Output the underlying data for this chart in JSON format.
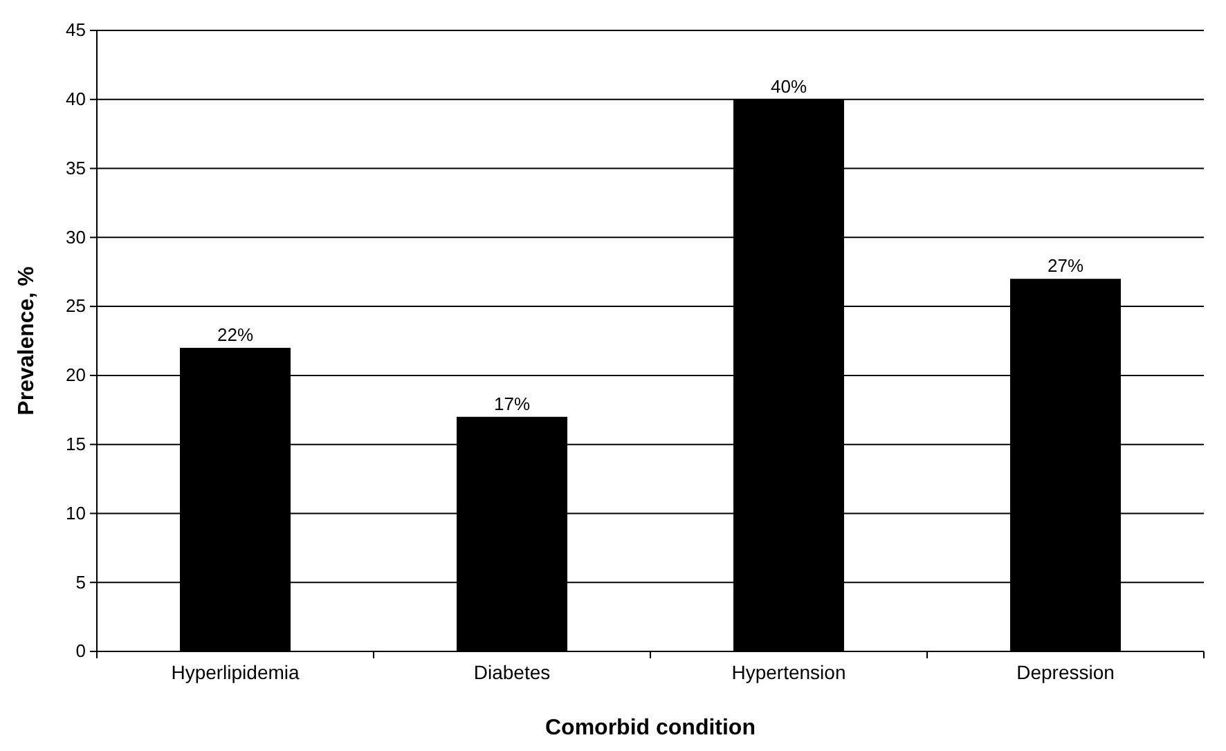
{
  "chart_data": {
    "type": "bar",
    "xlabel": "Comorbid condition",
    "ylabel": "Prevalence, %",
    "categories": [
      "Hyperlipidemia",
      "Diabetes",
      "Hypertension",
      "Depression"
    ],
    "values": [
      22,
      17,
      40,
      27
    ],
    "value_labels": [
      "22%",
      "17%",
      "40%",
      "27%"
    ],
    "color": "#000000",
    "ylim": [
      0,
      45
    ],
    "yticks": [
      0,
      5,
      10,
      15,
      20,
      25,
      30,
      35,
      40,
      45
    ],
    "grid": "y"
  }
}
